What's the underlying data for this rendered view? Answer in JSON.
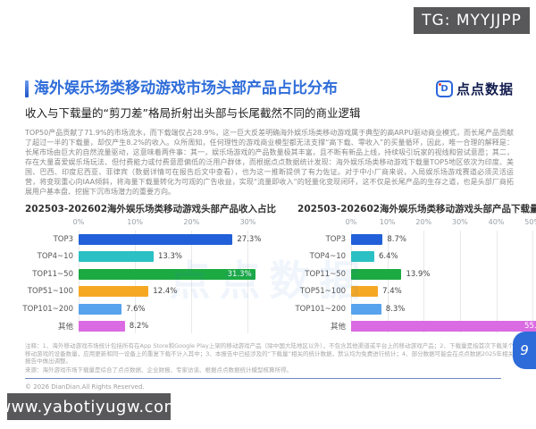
{
  "badge": {
    "text": "TG: MYYJJPP"
  },
  "watermark": {
    "text": "www.yabotiyugw.com"
  },
  "header": {
    "title": "海外娱乐场类移动游戏市场头部产品占比分布",
    "logo_glyph": "D",
    "logo_text": "点点数据",
    "accent_color": "#2e6cd9"
  },
  "subtitle": "收入与下载量的“剪刀差”格局折射出头部与长尾截然不同的商业逻辑",
  "body": "TOP50产品贡献了71.9%的市场流水，而下载端仅占28.9%，这一巨大反差明确海外娱乐场类移动游戏属于典型的高ARPU驱动商业模式，而长尾产品贡献了超过一半的下载量，却仅产生8.2%的收入。众所周知，任何理性的游戏商业模型都无法支撑“高下载、零收入”的买量循环，因此，唯一合理的解释是：长尾市场由巨大的自然流量驱动，这意味着两件事：其一，娱乐场游戏的产品数量极其丰富，且不断有新品上线，持续吸引玩家的视线和尝试意愿；其二，存在大量喜爱娱乐场玩法、但付费能力或付费意愿偏低的泛用户群体，而根据点点数据统计发现：海外娱乐场类移动游戏下载量TOP5地区依次为印度、美国、巴西、印度尼西亚、菲律宾（数据详情可在报告后文中查看），也为这一推断提供了有力佐证。对于中小厂商来说，入局娱乐场游戏赛道必须灵活运营，将变现重心向IAA倾斜，将海量下载量转化为可观的广告收益，实现“流量即收入”的轻量化变现闭环，这不仅是长尾产品的生存之道，也是头部厂商拓展用户基本盘、挖掘下沉市场潜力的重要方向。",
  "chart_data": [
    {
      "type": "bar",
      "orientation": "horizontal",
      "title": "202503-202602海外娱乐场类移动游戏头部产品收入占比",
      "categories": [
        "TOP3",
        "TOP4~10",
        "TOP11~50",
        "TOP51~100",
        "TOP101~200",
        "其他"
      ],
      "values": [
        27.3,
        13.3,
        31.3,
        12.4,
        7.6,
        8.2
      ],
      "labels": [
        "27.3%",
        "13.3%",
        "31.3%",
        "12.4%",
        "7.6%",
        "8.2%"
      ],
      "colors": [
        "#2160d8",
        "#2bc0c4",
        "#1cab43",
        "#f7a823",
        "#57a3ee",
        "#da6be2"
      ],
      "axis_ticks": [
        "0%",
        "10%",
        "20%",
        "30%"
      ],
      "tick_values": [
        0,
        10,
        20,
        30
      ],
      "axis_max": 35,
      "inside_label_index": 2,
      "grid": true,
      "legend": false
    },
    {
      "type": "bar",
      "orientation": "horizontal",
      "title": "202503-202602海外娱乐场类移动游戏头部产品下载量占比",
      "categories": [
        "TOP3",
        "TOP4~10",
        "TOP11~50",
        "TOP51~100",
        "TOP101~200",
        "其他"
      ],
      "values": [
        8.7,
        6.4,
        13.9,
        7.4,
        8.3,
        55.4
      ],
      "labels": [
        "8.7%",
        "6.4%",
        "13.9%",
        "7.4%",
        "8.3%",
        "55.4%"
      ],
      "colors": [
        "#2160d8",
        "#2bc0c4",
        "#1cab43",
        "#f7a823",
        "#57a3ee",
        "#da6be2"
      ],
      "axis_ticks": [
        "0%",
        "10%",
        "20%",
        "30%",
        "40%",
        "50%"
      ],
      "tick_values": [
        0,
        10,
        20,
        30,
        40,
        50
      ],
      "axis_max": 57,
      "inside_label_index": 5,
      "grid": true,
      "legend": false
    }
  ],
  "notes": [
    "注释：1、海外移动游戏市场统计包括所有在App Store和Google Play上架的移动游戏产品（除中国大陆地区以外），不包含其他渠道或平台上的移动游戏产品；2、下载量是指首次下载某个移动游戏的设备数量，应用更新和同一设备上的重复下载不计入其中；3、本报告中已经涉及的“下载量”相关的统计数据，默认均为免费进行统计；4、部分数据可能会在点点数据2025年相关报告中做出调整。",
    "来源：海外游戏市场下载量是综合了点点数据、企业财报、专家访谈、根据点点数据统计模型核算所得。"
  ],
  "footer": {
    "copyright": "© 2026 DianDian.All Rights Reserved.",
    "page": "9"
  }
}
